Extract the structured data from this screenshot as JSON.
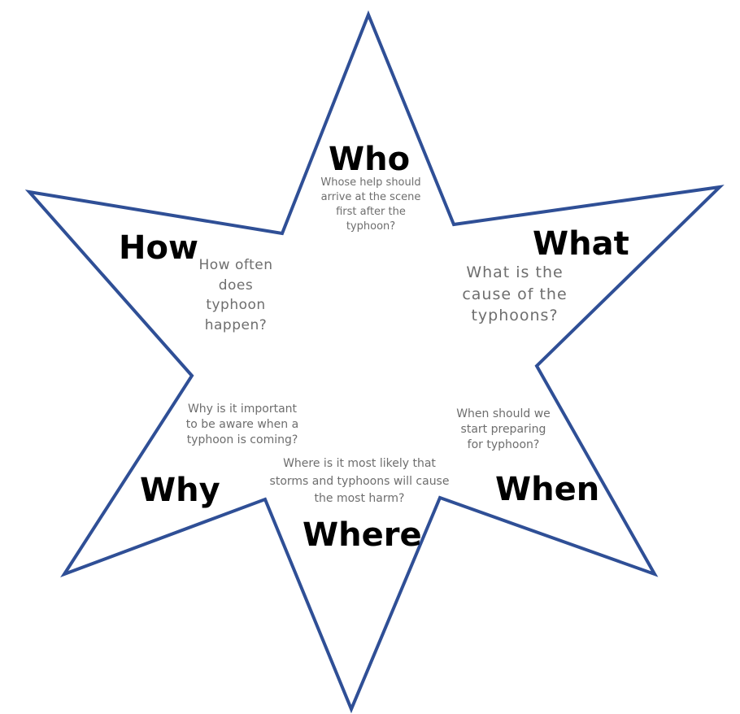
{
  "colors": {
    "star_outline": "#2f4f96",
    "heading_text": "#000000",
    "question_text": "#6e6e6e"
  },
  "star": {
    "headings": {
      "who": "Who",
      "what": "What",
      "how": "How",
      "why": "Why",
      "when": "When",
      "where": "Where"
    },
    "questions": {
      "who": "Whose help should\narrive at the scene\nfirst after the\ntyphoon?",
      "what": "What is the\ncause of the\ntyphoons?",
      "how": "How often\ndoes\ntyphoon\nhappen?",
      "why": "Why is it important\nto be aware when a\ntyphoon is coming?",
      "when": "When should we\nstart preparing\nfor typhoon?",
      "where": "Where is it most likely that\nstorms and typhoons will cause\nthe most harm?"
    }
  }
}
